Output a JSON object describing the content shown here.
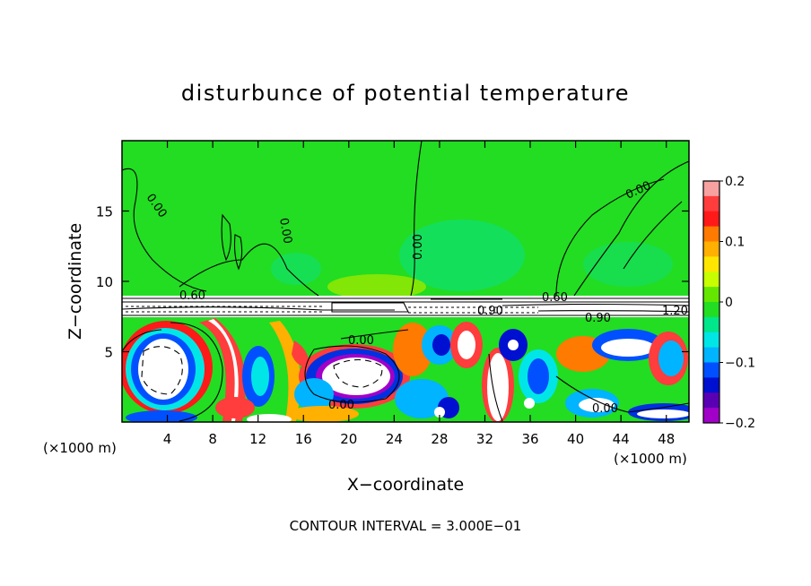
{
  "chart_data": {
    "type": "heatmap",
    "title": "disturbunce of potential temperature",
    "xlabel": "X−coordinate",
    "ylabel": "Z−coordinate",
    "x_unit_left": "(×1000 m)",
    "x_unit_right": "(×1000 m)",
    "xlim": [
      0,
      50
    ],
    "ylim": [
      0,
      20
    ],
    "x_ticks": [
      4,
      8,
      12,
      16,
      20,
      24,
      28,
      32,
      36,
      40,
      44,
      48
    ],
    "y_ticks": [
      5,
      10,
      15
    ],
    "colorbar": {
      "range": [
        -0.2,
        0.2
      ],
      "ticks": [
        "0.2",
        "0.1",
        "0",
        "−0.1",
        "−0.2"
      ],
      "colors": [
        "#f7a1a1",
        "#ff3d3d",
        "#ff1a1a",
        "#ff7a00",
        "#ffb000",
        "#ffe600",
        "#c8ff00",
        "#64e600",
        "#22dd22",
        "#00e68a",
        "#00e6e6",
        "#00b4ff",
        "#0050ff",
        "#0010d0",
        "#5a00b4",
        "#a000c8"
      ]
    },
    "contour_labels": [
      "0.00",
      "0.00",
      "0.00",
      "0.00",
      "0.00",
      "0.00",
      "0.00",
      "0.60",
      "0.60",
      "0.90",
      "0.90",
      "1.20"
    ],
    "footer": "CONTOUR INTERVAL = 3.000E−01"
  }
}
